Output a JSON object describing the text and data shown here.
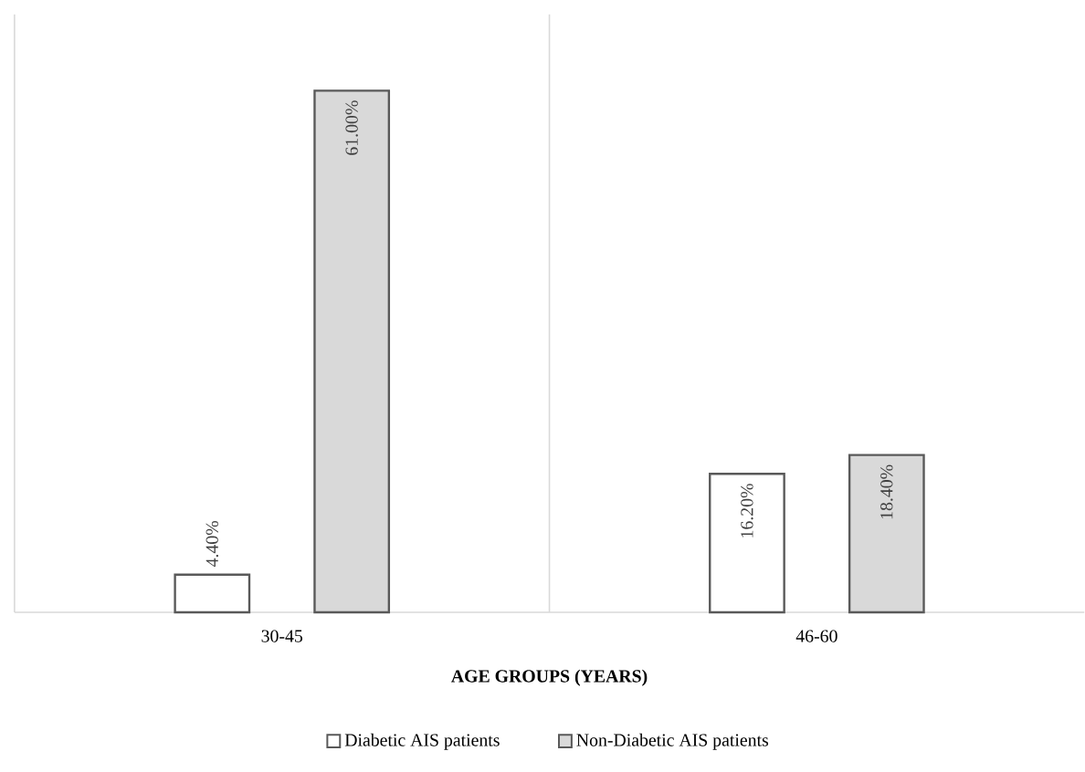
{
  "chart_data": {
    "type": "bar",
    "xlabel": "AGE GROUPS (YEARS)",
    "categories": [
      "30-45",
      "46-60"
    ],
    "series": [
      {
        "name": "Diabetic AIS patients",
        "color": "#ffffff",
        "values": [
          4.4,
          16.2
        ],
        "value_labels": [
          "4.40%",
          "16.20%"
        ]
      },
      {
        "name": "Non-Diabetic AIS patients",
        "color": "#d9d9d9",
        "values": [
          61.0,
          18.4
        ],
        "value_labels": [
          "61.00%",
          "18.40%"
        ]
      }
    ],
    "legend": "bottom",
    "grid": "x"
  }
}
